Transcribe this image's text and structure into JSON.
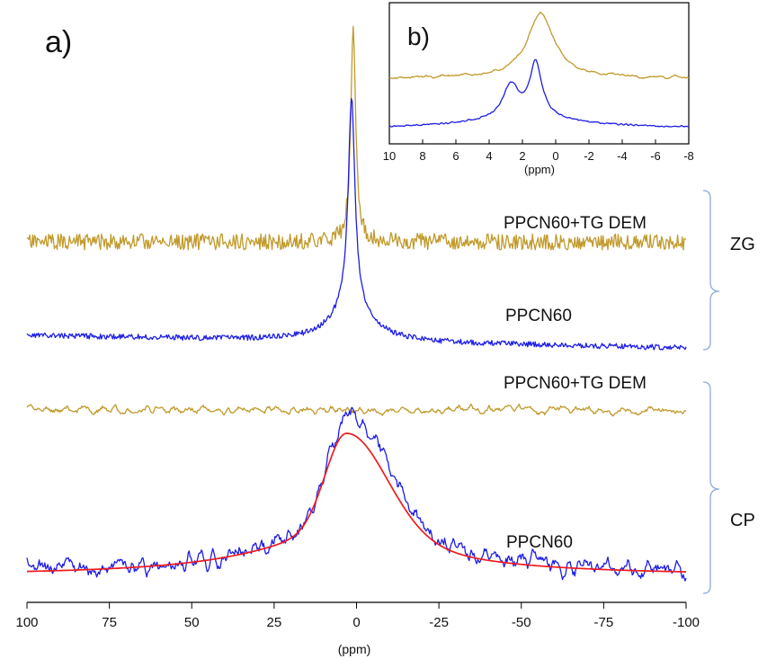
{
  "colors": {
    "gold": "#c19a2c",
    "blue": "#1e1ee6",
    "red": "#ee1c1c",
    "bracket": "#8eaadb",
    "axis": "#000000"
  },
  "panel_a": {
    "label": "a)"
  },
  "panel_b": {
    "label": "b)"
  },
  "group_labels": {
    "zg": "ZG",
    "cp": "CP"
  },
  "chart_data": [
    {
      "type": "line",
      "panel": "a",
      "xlabel": "(ppm)",
      "xlim": [
        100,
        -100
      ],
      "x_reversed": true,
      "xticks": [
        100,
        75,
        50,
        25,
        0,
        -25,
        -50,
        -75,
        -100
      ],
      "xtick_labels": [
        "100",
        "75",
        "50",
        "25",
        "0",
        "-25",
        "-50",
        "-75",
        "-100"
      ],
      "y_axis_shown": false,
      "stacked_offsets": true,
      "series": [
        {
          "name": "PPCN60+TG DEM",
          "group": "ZG",
          "color": "gold",
          "shape": "sharp peak at ~ 1 ppm on noisy flat baseline",
          "peak_x": 1,
          "width": 0.9
        },
        {
          "name": "PPCN60",
          "group": "ZG",
          "color": "blue",
          "shape": "sharp peak at ~ 1.5 ppm with broad base",
          "peak_x": 1.5,
          "width": 1.2
        },
        {
          "name": "PPCN60+TG DEM",
          "group": "CP",
          "color": "gold",
          "shape": "flat noisy baseline, no peak"
        },
        {
          "name": "PPCN60",
          "group": "CP",
          "color": "blue",
          "shape": "broad asymmetric hump with maximum near 2 ppm",
          "peak_x": 2
        },
        {
          "name": "fit",
          "group": "CP",
          "color": "red",
          "shape": "smooth fit of broad hump",
          "peak_x": 3
        }
      ]
    },
    {
      "type": "line",
      "panel": "b",
      "xlabel": "(ppm)",
      "xlim": [
        10,
        -8
      ],
      "x_reversed": true,
      "xticks": [
        10,
        8,
        6,
        4,
        2,
        0,
        -2,
        -4,
        -6,
        -8
      ],
      "xtick_labels": [
        "10",
        "8",
        "6",
        "4",
        "2",
        "0",
        "-2",
        "-4",
        "-6",
        "-8"
      ],
      "y_axis_shown": false,
      "series": [
        {
          "color": "gold",
          "peaks": [
            {
              "x": 0.9,
              "width": 1.0
            }
          ]
        },
        {
          "color": "blue",
          "peaks": [
            {
              "x": 1.2,
              "width": 0.45
            },
            {
              "x": 2.7,
              "width": 0.55
            }
          ]
        }
      ]
    }
  ]
}
